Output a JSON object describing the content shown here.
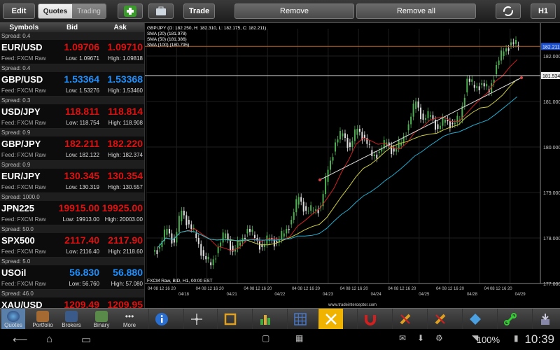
{
  "toolbar": {
    "edit": "Edit",
    "quotes_tab": "Quotes",
    "trading_tab": "Trading",
    "trade": "Trade",
    "remove": "Remove",
    "remove_all": "Remove all",
    "timeframe": "H1"
  },
  "quotes": {
    "headers": {
      "symbols": "Symbols",
      "bid": "Bid",
      "ask": "Ask"
    },
    "rows": [
      {
        "spread": "Spread: 0.4",
        "symbol": "EUR/USD",
        "bid": "1.09706",
        "ask": "1.09710",
        "feed": "Feed: FXCM Raw",
        "low": "Low: 1.09671",
        "high": "High: 1.09818",
        "color": "#e01010"
      },
      {
        "spread": "Spread: 0.4",
        "symbol": "GBP/USD",
        "bid": "1.53364",
        "ask": "1.53368",
        "feed": "Feed: FXCM Raw",
        "low": "Low: 1.53276",
        "high": "High: 1.53460",
        "color": "#1e90ff"
      },
      {
        "spread": "Spread: 0.3",
        "symbol": "USD/JPY",
        "bid": "118.811",
        "ask": "118.814",
        "feed": "Feed: FXCM Raw",
        "low": "Low: 118.754",
        "high": "High: 118.908",
        "color": "#e01010"
      },
      {
        "spread": "Spread: 0.9",
        "symbol": "GBP/JPY",
        "bid": "182.211",
        "ask": "182.220",
        "feed": "Feed: FXCM Raw",
        "low": "Low: 182.122",
        "high": "High: 182.374",
        "color": "#e01010"
      },
      {
        "spread": "Spread: 0.9",
        "symbol": "EUR/JPY",
        "bid": "130.345",
        "ask": "130.354",
        "feed": "Feed: FXCM Raw",
        "low": "Low: 130.319",
        "high": "High: 130.557",
        "color": "#e01010"
      },
      {
        "spread": "Spread: 1000.0",
        "symbol": "JPN225",
        "bid": "19915.00",
        "ask": "19925.00",
        "feed": "Feed: FXCM Raw",
        "low": "Low: 19913.00",
        "high": "High: 20003.00",
        "color": "#e01010"
      },
      {
        "spread": "Spread: 50.0",
        "symbol": "SPX500",
        "bid": "2117.40",
        "ask": "2117.90",
        "feed": "Feed: FXCM Raw",
        "low": "Low: 2116.40",
        "high": "High: 2118.60",
        "color": "#e01010"
      },
      {
        "spread": "Spread: 5.0",
        "symbol": "USOil",
        "bid": "56.830",
        "ask": "56.880",
        "feed": "Feed: FXCM Raw",
        "low": "Low: 56.760",
        "high": "High: 57.080",
        "color": "#1e90ff"
      },
      {
        "spread": "Spread: 46.0",
        "symbol": "XAU/USD",
        "bid": "1209.49",
        "ask": "1209.95",
        "feed": "",
        "low": "",
        "high": "",
        "color": "#e01010"
      }
    ]
  },
  "chart": {
    "legend": [
      "GBP/JPY (O: 182.250, H: 182.310, L: 182.175, C: 182.211)",
      "SMA (20) (181.978)",
      "SMA (50) (181.386)",
      "SMA (100) (180.795)"
    ],
    "footer": "FXCM Raw, BID, H1, 00:00 EST",
    "watermark": "www.tradeinterceptor.com",
    "price_tag": "182.211",
    "line_tag": "181.534",
    "y_ticks": [
      "182.000",
      "181.000",
      "180.000",
      "179.000",
      "178.000",
      "177.000"
    ],
    "date_labels": [
      "04/18",
      "04/21",
      "04/22",
      "04/23",
      "04/24",
      "04/25",
      "04/28",
      "04/29"
    ],
    "hour_labels": "04 08 12 16 20"
  },
  "chart_data": {
    "type": "line",
    "title": "GBP/JPY (O: 182.250, H: 182.310, L: 182.175, C: 182.211)",
    "ylim": [
      177.0,
      182.6
    ],
    "close": [
      177.8,
      178.2,
      177.9,
      178.6,
      178.3,
      178.0,
      177.6,
      177.4,
      177.8,
      178.1,
      177.7,
      177.9,
      178.2,
      178.0,
      177.8,
      178.0,
      177.9,
      178.1,
      178.4,
      178.9,
      178.6,
      178.6,
      178.7,
      179.5,
      180.1,
      180.3,
      180.0,
      180.4,
      180.2,
      179.8,
      179.9,
      180.1,
      179.9,
      180.1,
      180.5,
      181.0,
      180.6,
      180.7,
      180.4,
      180.6,
      180.5,
      180.6,
      181.5,
      181.3,
      181.4,
      181.2,
      181.8,
      182.1,
      182.3,
      182.2
    ],
    "sma": [
      {
        "name": "SMA (20)",
        "value": 181.978,
        "color": "#cc2222"
      },
      {
        "name": "SMA (50)",
        "value": 181.386,
        "color": "#cccc44"
      },
      {
        "name": "SMA (100)",
        "value": 180.795,
        "color": "#22aacc"
      }
    ],
    "grid": true
  },
  "bottom": {
    "tabs": [
      "Quotes",
      "Portfolio",
      "Brokers",
      "Binary",
      "More"
    ]
  },
  "status": {
    "battery": "100%",
    "time": "10:39"
  }
}
